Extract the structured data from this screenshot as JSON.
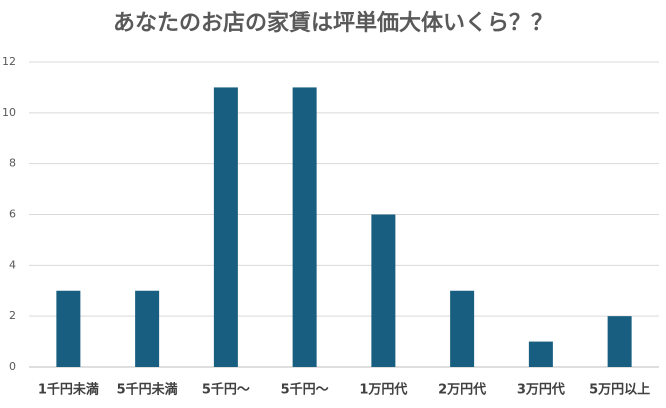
{
  "chart_data": {
    "type": "bar",
    "title": "あなたのお店の家賃は坪単価大体いくら？？",
    "categories": [
      "1千円未満",
      "5千円未満",
      "5千円〜",
      "5千円〜",
      "1万円代",
      "2万円代",
      "3万円代",
      "5万円以上"
    ],
    "values": [
      3,
      3,
      11,
      11,
      6,
      3,
      1,
      2
    ],
    "color": "#175e80",
    "ylim": [
      0,
      12
    ],
    "yticks": [
      0,
      2,
      4,
      6,
      8,
      10,
      12
    ],
    "grid": true
  }
}
